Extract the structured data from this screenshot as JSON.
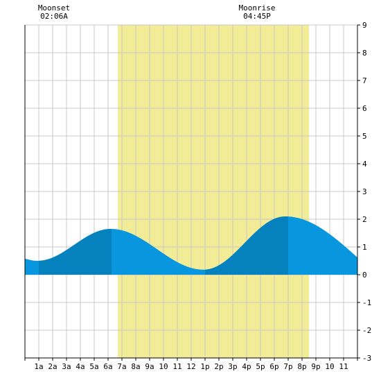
{
  "moon_events": [
    {
      "label": "Moonset",
      "time": "02:06A",
      "hour": 2.1
    },
    {
      "label": "Moonrise",
      "time": "04:45P",
      "hour": 16.75
    }
  ],
  "colors": {
    "background": "#ffffff",
    "grid": "#c8c8c8",
    "daylight": "#f2ec96",
    "tide_fill": "#0896de",
    "tide_fill_dark": "#0582be",
    "axis": "#000000"
  },
  "chart_data": {
    "type": "area",
    "title": "",
    "xlabel": "",
    "ylabel": "",
    "xlim": [
      0,
      24
    ],
    "ylim": [
      -3,
      9
    ],
    "grid": true,
    "x_ticks": [
      1,
      2,
      3,
      4,
      5,
      6,
      7,
      8,
      9,
      10,
      11,
      12,
      13,
      14,
      15,
      16,
      17,
      18,
      19,
      20,
      21,
      22,
      23
    ],
    "x_tick_labels": [
      "1a",
      "2a",
      "3a",
      "4a",
      "5a",
      "6a",
      "7a",
      "8a",
      "9a",
      "10",
      "11",
      "12",
      "1p",
      "2p",
      "3p",
      "4p",
      "5p",
      "6p",
      "7p",
      "8p",
      "9p",
      "10",
      "11"
    ],
    "y_ticks": [
      -3,
      -2,
      -1,
      0,
      1,
      2,
      3,
      4,
      5,
      6,
      7,
      8,
      9
    ],
    "y_tick_labels": [
      "-3",
      "-2",
      "-1",
      "0",
      "1",
      "2",
      "3",
      "4",
      "5",
      "6",
      "7",
      "8",
      "9"
    ],
    "daylight": {
      "start": 6.7,
      "end": 20.5
    },
    "dark_bands": [
      [
        1.0,
        6.25
      ],
      [
        13.0,
        19.0
      ]
    ],
    "tide_extremes": [
      {
        "x": 0.9,
        "y": 0.5
      },
      {
        "x": 6.2,
        "y": 1.65
      },
      {
        "x": 12.9,
        "y": 0.18
      },
      {
        "x": 18.8,
        "y": 2.1
      }
    ],
    "tide_start": {
      "x": 0,
      "y": 0.58
    },
    "tide_end": {
      "x": 24,
      "y": 0.62
    }
  }
}
